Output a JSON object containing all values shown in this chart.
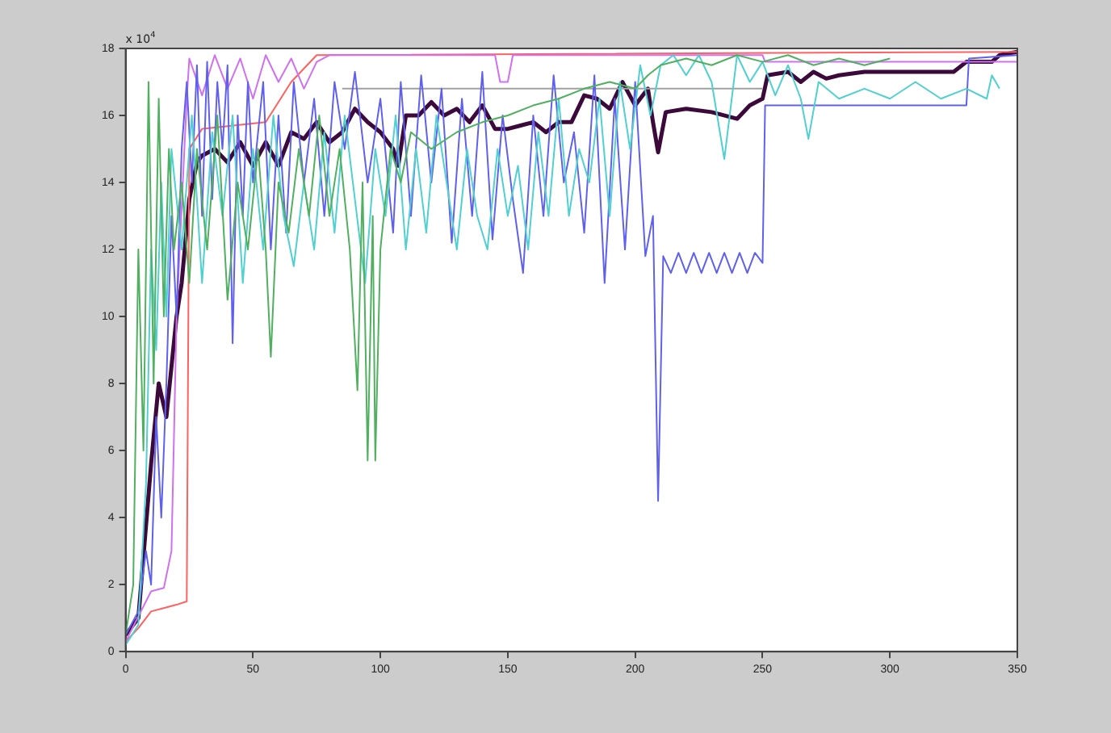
{
  "chart_data": {
    "type": "line",
    "xlim": [
      0,
      350
    ],
    "xticks": [
      0,
      50,
      100,
      150,
      200,
      250,
      300,
      350
    ],
    "ylim": [
      0,
      18
    ],
    "yticks": [
      0,
      2,
      4,
      6,
      8,
      10,
      12,
      14,
      16,
      18
    ],
    "grid": false,
    "legend": false,
    "marker": "none",
    "annotations": [
      "x 10$^{4}$"
    ],
    "series": [
      {
        "color": "#50b060",
        "x": [
          0,
          3,
          5,
          7,
          9,
          11,
          13,
          15,
          17,
          19,
          22,
          25,
          28,
          32,
          36,
          40,
          44,
          48,
          52,
          55,
          57,
          60,
          64,
          68,
          72,
          76,
          80,
          84,
          88,
          91,
          93,
          95,
          97,
          98,
          100,
          104,
          108,
          112,
          120,
          130,
          140,
          150,
          160,
          170,
          180,
          190,
          200,
          205,
          210,
          220,
          230,
          240,
          250,
          260,
          270,
          280,
          290,
          300
        ],
        "values": [
          0.5,
          2,
          12,
          6,
          17,
          8,
          16.5,
          10,
          15,
          12,
          14,
          11,
          15,
          12,
          16,
          10.5,
          14,
          12,
          15,
          12,
          8.8,
          14,
          12.5,
          15,
          13,
          16,
          13,
          15,
          12,
          7.8,
          14,
          5.7,
          13,
          5.7,
          12,
          15,
          14,
          15.5,
          15,
          15.5,
          15.8,
          16,
          16.3,
          16.5,
          16.8,
          17,
          16.8,
          17.2,
          17.5,
          17.7,
          17.5,
          17.8,
          17.6,
          17.8,
          17.5,
          17.7,
          17.5,
          17.7
        ]
      },
      {
        "color": "#50d0d0",
        "x": [
          0,
          5,
          8,
          10,
          12,
          14,
          16,
          18,
          22,
          26,
          30,
          34,
          38,
          42,
          46,
          50,
          54,
          58,
          62,
          66,
          70,
          74,
          78,
          82,
          86,
          90,
          94,
          98,
          102,
          106,
          110,
          114,
          118,
          122,
          126,
          130,
          134,
          138,
          142,
          146,
          150,
          154,
          158,
          162,
          166,
          170,
          174,
          178,
          182,
          186,
          190,
          194,
          198,
          202,
          206,
          210,
          215,
          220,
          225,
          230,
          235,
          240,
          245,
          250,
          255,
          260,
          265,
          268,
          272,
          280,
          290,
          300,
          310,
          320,
          330,
          338,
          340,
          343
        ],
        "values": [
          0.2,
          0.8,
          5,
          12,
          9,
          14,
          10,
          15,
          12,
          16,
          11,
          15.5,
          13,
          16,
          11,
          15,
          12,
          16,
          13,
          11.5,
          14,
          12,
          15.5,
          12.5,
          16,
          13.5,
          11,
          15,
          13,
          16,
          12,
          15,
          12.5,
          16,
          14,
          12,
          15,
          13,
          12,
          15,
          13,
          14.5,
          12,
          15.5,
          13,
          16.5,
          13,
          15,
          14,
          16.5,
          13,
          17,
          15,
          17.5,
          16,
          17.5,
          17.8,
          17.2,
          17.8,
          17,
          14.7,
          17.8,
          17,
          17.6,
          16.6,
          17.5,
          16.5,
          15.3,
          17,
          16.5,
          16.8,
          16.5,
          17,
          16.5,
          16.8,
          16.5,
          17.2,
          16.8
        ]
      },
      {
        "color": "#6060ee",
        "x": [
          0,
          5,
          8,
          10,
          12,
          14,
          16,
          18,
          20,
          22,
          24,
          26,
          28,
          30,
          32,
          34,
          36,
          38,
          40,
          42,
          44,
          46,
          48,
          50,
          54,
          57,
          60,
          63,
          66,
          70,
          74,
          78,
          82,
          86,
          90,
          95,
          100,
          105,
          108,
          112,
          116,
          120,
          124,
          128,
          132,
          136,
          140,
          144,
          148,
          152,
          156,
          160,
          164,
          168,
          172,
          176,
          180,
          184,
          188,
          192,
          196,
          200,
          204,
          207,
          209,
          211,
          214,
          217,
          220,
          223,
          226,
          229,
          232,
          235,
          238,
          241,
          244,
          247,
          250,
          251,
          330,
          331,
          350
        ],
        "values": [
          0.5,
          1.2,
          3,
          2,
          7,
          4,
          8,
          13,
          10,
          15,
          17,
          14,
          17.5,
          13,
          17.6,
          13.5,
          17,
          15,
          17.5,
          9.2,
          16,
          13,
          17,
          14,
          17,
          12,
          16,
          12.5,
          17,
          14,
          16.5,
          13,
          17,
          15,
          17.3,
          14,
          16.5,
          12.5,
          17,
          13,
          17.2,
          14,
          16.8,
          12.2,
          16.5,
          13,
          17.3,
          12.3,
          16,
          13.5,
          11.3,
          16,
          13,
          17.2,
          14,
          15.5,
          12.5,
          17.2,
          11,
          16.5,
          12,
          17,
          11.8,
          13,
          4.5,
          11.8,
          11.3,
          11.9,
          11.3,
          11.9,
          11.3,
          11.9,
          11.3,
          11.9,
          11.3,
          11.9,
          11.3,
          11.9,
          11.6,
          16.3,
          16.3,
          17.7,
          17.8
        ]
      },
      {
        "color": "#d070f0",
        "x": [
          0,
          10,
          15,
          18,
          20,
          24,
          25,
          30,
          35,
          40,
          45,
          50,
          55,
          60,
          65,
          70,
          75,
          80,
          145,
          147,
          150,
          152,
          250,
          251,
          350
        ],
        "values": [
          0.3,
          1.8,
          1.9,
          3,
          10,
          16.5,
          17.7,
          16.6,
          17.8,
          16.8,
          17.7,
          16.5,
          17.8,
          17,
          17.7,
          16.8,
          17.6,
          17.8,
          17.8,
          17,
          17,
          17.8,
          17.8,
          17.6,
          17.6
        ]
      },
      {
        "color": "#a0a0a0",
        "x": [
          85,
          250
        ],
        "values": [
          16.8,
          16.8
        ]
      },
      {
        "color": "#ff6060",
        "x": [
          0,
          5,
          10,
          15,
          20,
          24,
          25,
          30,
          55,
          65,
          75,
          350
        ],
        "values": [
          0.3,
          0.7,
          1.2,
          1.3,
          1.4,
          1.5,
          15,
          15.6,
          15.8,
          17,
          17.8,
          17.9
        ]
      },
      {
        "color": "#3b0a3b",
        "x": [
          0,
          5,
          10,
          13,
          16,
          20,
          22,
          25,
          28,
          30,
          35,
          40,
          45,
          50,
          55,
          60,
          65,
          70,
          75,
          80,
          85,
          90,
          95,
          100,
          105,
          107,
          110,
          115,
          120,
          125,
          130,
          135,
          140,
          145,
          150,
          155,
          160,
          165,
          170,
          175,
          180,
          185,
          190,
          195,
          200,
          205,
          207,
          209,
          212,
          220,
          230,
          240,
          245,
          250,
          252,
          260,
          265,
          270,
          275,
          280,
          290,
          300,
          310,
          325,
          330,
          340,
          343,
          350
        ],
        "values": [
          0.5,
          1,
          5.6,
          8,
          7,
          10,
          11,
          13.5,
          14.6,
          14.8,
          15,
          14.6,
          15.2,
          14.5,
          15.2,
          14.5,
          15.5,
          15.3,
          15.8,
          15.2,
          15.5,
          16.2,
          15.8,
          15.5,
          15,
          14.5,
          16,
          16,
          16.4,
          16,
          16.2,
          15.8,
          16.3,
          15.6,
          15.6,
          15.7,
          15.8,
          15.5,
          15.8,
          15.8,
          16.6,
          16.5,
          16.2,
          17,
          16.3,
          16.8,
          15.8,
          14.9,
          16.1,
          16.2,
          16.1,
          15.9,
          16.3,
          16.5,
          17.2,
          17.3,
          17,
          17.3,
          17.1,
          17.2,
          17.3,
          17.3,
          17.3,
          17.3,
          17.6,
          17.6,
          17.8,
          17.9
        ]
      }
    ]
  }
}
